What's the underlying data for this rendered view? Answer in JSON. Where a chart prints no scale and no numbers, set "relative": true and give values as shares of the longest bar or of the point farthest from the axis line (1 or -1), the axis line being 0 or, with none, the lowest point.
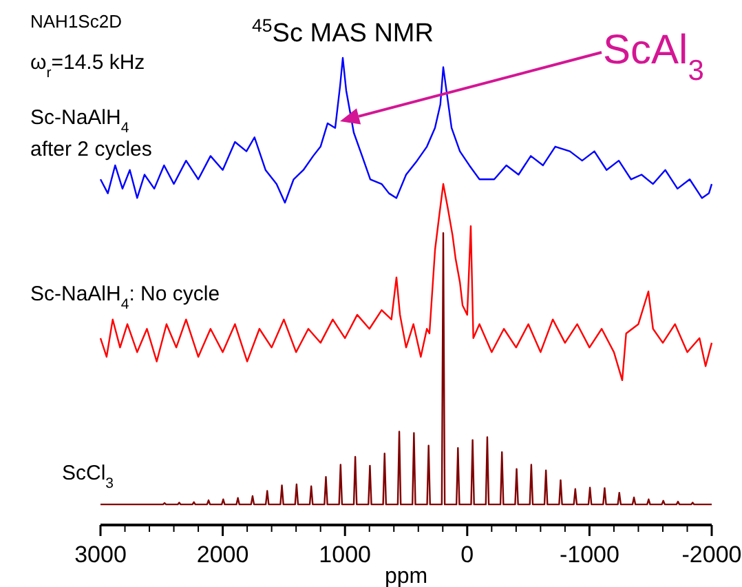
{
  "chart_data": {
    "type": "line",
    "relative": true,
    "title": "$^{45}$Sc MAS NMR",
    "xlabel": "ppm",
    "legend": false,
    "grid": false,
    "marker": "none",
    "line_style": "solid",
    "xlim": [
      3000,
      -2000
    ],
    "xticks": [
      3000,
      {
        "value": 2800,
        "label": null
      },
      {
        "value": 2600,
        "label": null
      },
      {
        "value": 2400,
        "label": null
      },
      {
        "value": 2200,
        "label": null
      },
      2000,
      {
        "value": 1800,
        "label": null
      },
      {
        "value": 1600,
        "label": null
      },
      {
        "value": 1400,
        "label": null
      },
      {
        "value": 1200,
        "label": null
      },
      1000,
      {
        "value": 800,
        "label": null
      },
      {
        "value": 600,
        "label": null
      },
      {
        "value": 400,
        "label": null
      },
      {
        "value": 200,
        "label": null
      },
      0,
      {
        "value": -200,
        "label": null
      },
      {
        "value": -400,
        "label": null
      },
      {
        "value": -600,
        "label": null
      },
      {
        "value": -800,
        "label": null
      },
      -1000,
      {
        "value": -1200,
        "label": null
      },
      {
        "value": -1400,
        "label": null
      },
      {
        "value": -1600,
        "label": null
      },
      {
        "value": -1800,
        "label": null
      },
      -2000
    ],
    "annotations": [
      "NAH1Sc2D",
      "ω$_{r}$=14.5 kHz",
      "ScAl$_{3}$"
    ],
    "series": [
      {
        "name": "Sc-NaAlH$_{4}$\nafter 2 cycles",
        "color": "#0000ff",
        "x": [
          3000,
          2940,
          2880,
          2820,
          2760,
          2700,
          2640,
          2560,
          2480,
          2400,
          2300,
          2200,
          2100,
          2000,
          1900,
          1806,
          1740,
          1650,
          1560,
          1491,
          1420,
          1340,
          1260,
          1200,
          1142,
          1080,
          1040,
          1018,
          990,
          928,
          860,
          793,
          700,
          640,
          579,
          500,
          410,
          330,
          264,
          220,
          196,
          170,
          128,
          60,
          -17,
          -100,
          -221,
          -320,
          -420,
          -520,
          -620,
          -720,
          -840,
          -940,
          -1040,
          -1140,
          -1240,
          -1340,
          -1426,
          -1520,
          -1620,
          -1720,
          -1820,
          -1920,
          -1977,
          -2000
        ],
        "values": [
          0.74,
          0.71,
          0.77,
          0.72,
          0.76,
          0.7,
          0.75,
          0.72,
          0.77,
          0.73,
          0.78,
          0.74,
          0.79,
          0.76,
          0.82,
          0.8,
          0.83,
          0.76,
          0.73,
          0.69,
          0.74,
          0.76,
          0.79,
          0.81,
          0.86,
          0.85,
          0.94,
          1.0,
          0.93,
          0.84,
          0.79,
          0.74,
          0.73,
          0.71,
          0.7,
          0.75,
          0.78,
          0.81,
          0.85,
          0.9,
          0.98,
          0.93,
          0.85,
          0.8,
          0.77,
          0.74,
          0.74,
          0.77,
          0.75,
          0.79,
          0.77,
          0.81,
          0.8,
          0.78,
          0.8,
          0.76,
          0.78,
          0.74,
          0.75,
          0.73,
          0.76,
          0.72,
          0.74,
          0.7,
          0.71,
          0.73
        ]
      },
      {
        "name": "Sc-NaAlH$_{4}$: No cycle",
        "color": "#ff0000",
        "x": [
          3000,
          2950,
          2900,
          2840,
          2780,
          2700,
          2620,
          2540,
          2460,
          2380,
          2300,
          2200,
          2100,
          2000,
          1900,
          1800,
          1700,
          1600,
          1500,
          1400,
          1300,
          1200,
          1100,
          1000,
          900,
          800,
          700,
          620,
          579,
          550,
          500,
          440,
          380,
          330,
          309,
          263,
          230,
          196,
          160,
          120,
          95,
          60,
          38,
          0,
          -29,
          -50,
          -100,
          -200,
          -300,
          -400,
          -500,
          -600,
          -700,
          -800,
          -900,
          -1000,
          -1100,
          -1200,
          -1268,
          -1300,
          -1400,
          -1482,
          -1520,
          -1600,
          -1700,
          -1800,
          -1900,
          -1950,
          -2000
        ],
        "values": [
          0.4,
          0.36,
          0.44,
          0.38,
          0.43,
          0.37,
          0.42,
          0.35,
          0.43,
          0.38,
          0.44,
          0.36,
          0.42,
          0.37,
          0.43,
          0.35,
          0.42,
          0.38,
          0.44,
          0.37,
          0.42,
          0.39,
          0.44,
          0.4,
          0.45,
          0.42,
          0.46,
          0.44,
          0.53,
          0.45,
          0.38,
          0.43,
          0.36,
          0.42,
          0.41,
          0.59,
          0.66,
          0.73,
          0.68,
          0.62,
          0.57,
          0.52,
          0.47,
          0.45,
          0.64,
          0.4,
          0.43,
          0.37,
          0.42,
          0.38,
          0.43,
          0.37,
          0.44,
          0.39,
          0.43,
          0.38,
          0.42,
          0.37,
          0.31,
          0.41,
          0.43,
          0.5,
          0.42,
          0.39,
          0.43,
          0.37,
          0.4,
          0.34,
          0.39
        ]
      },
      {
        "name": "ScCl$_{3}$",
        "color": "#800000",
        "x": [
          3000,
          2488,
          2476,
          2464,
          2368,
          2356,
          2344,
          2248,
          2236,
          2224,
          2128,
          2116,
          2104,
          2008,
          1996,
          1984,
          1888,
          1876,
          1864,
          1768,
          1756,
          1744,
          1648,
          1636,
          1624,
          1528,
          1516,
          1504,
          1408,
          1396,
          1384,
          1288,
          1276,
          1264,
          1168,
          1156,
          1144,
          1048,
          1036,
          1024,
          928,
          916,
          904,
          808,
          796,
          784,
          688,
          676,
          664,
          568,
          556,
          544,
          448,
          436,
          424,
          328,
          316,
          304,
          208,
          196,
          184,
          88,
          76,
          64,
          -32,
          -44,
          -56,
          -152,
          -164,
          -176,
          -272,
          -284,
          -296,
          -392,
          -404,
          -416,
          -512,
          -524,
          -536,
          -632,
          -644,
          -656,
          -752,
          -764,
          -776,
          -872,
          -884,
          -896,
          -992,
          -1004,
          -1016,
          -1112,
          -1124,
          -1136,
          -1232,
          -1244,
          -1256,
          -1352,
          -1364,
          -1376,
          -1472,
          -1484,
          -1496,
          -1592,
          -1604,
          -1616,
          -1712,
          -1724,
          -1736,
          -1832,
          -1844,
          -1856,
          -2000
        ],
        "values": [
          0.044,
          0.044,
          0.047,
          0.044,
          0.044,
          0.048,
          0.044,
          0.044,
          0.049,
          0.044,
          0.044,
          0.053,
          0.044,
          0.044,
          0.055,
          0.044,
          0.044,
          0.058,
          0.044,
          0.044,
          0.062,
          0.044,
          0.044,
          0.073,
          0.044,
          0.044,
          0.085,
          0.044,
          0.044,
          0.087,
          0.044,
          0.044,
          0.083,
          0.044,
          0.044,
          0.103,
          0.044,
          0.044,
          0.129,
          0.044,
          0.044,
          0.146,
          0.044,
          0.044,
          0.127,
          0.044,
          0.044,
          0.153,
          0.044,
          0.044,
          0.2,
          0.044,
          0.044,
          0.197,
          0.044,
          0.044,
          0.17,
          0.044,
          0.044,
          0.625,
          0.044,
          0.044,
          0.165,
          0.044,
          0.044,
          0.182,
          0.044,
          0.044,
          0.188,
          0.044,
          0.044,
          0.156,
          0.044,
          0.044,
          0.12,
          0.044,
          0.044,
          0.129,
          0.044,
          0.044,
          0.117,
          0.044,
          0.044,
          0.096,
          0.044,
          0.044,
          0.077,
          0.044,
          0.044,
          0.08,
          0.044,
          0.044,
          0.079,
          0.044,
          0.044,
          0.069,
          0.044,
          0.044,
          0.059,
          0.044,
          0.044,
          0.055,
          0.044,
          0.044,
          0.052,
          0.044,
          0.044,
          0.05,
          0.044,
          0.044,
          0.048,
          0.044,
          0.044
        ]
      }
    ]
  }
}
